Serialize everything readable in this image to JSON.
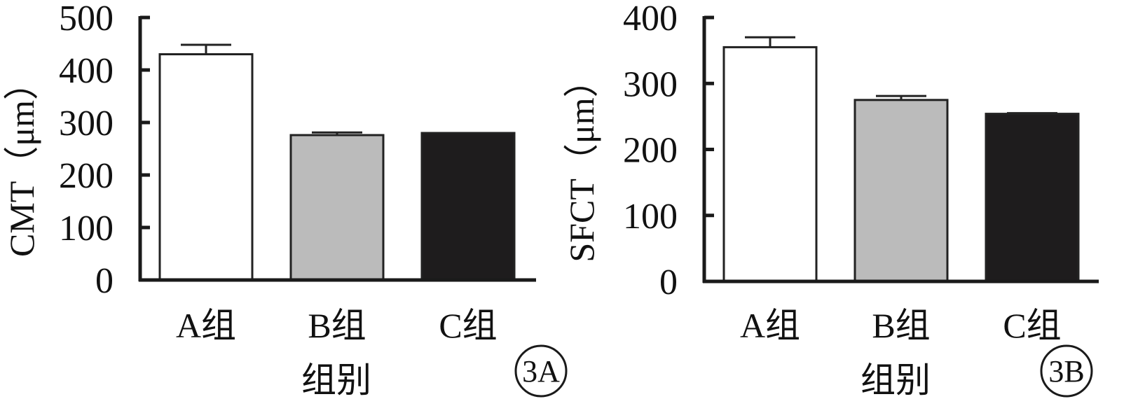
{
  "chart_data": [
    {
      "type": "bar",
      "panel_label": "3A",
      "categories": [
        "A组",
        "B组",
        "C组"
      ],
      "values": [
        430,
        276,
        280
      ],
      "errors": [
        18,
        5,
        0
      ],
      "colors": [
        "#ffffff",
        "#bbbbbb",
        "#1e1c1d"
      ],
      "ylabel": "CMT（μm）",
      "xlabel": "组别",
      "ylim": [
        0,
        500
      ],
      "yticks": [
        0,
        100,
        200,
        300,
        400,
        500
      ],
      "grid": false
    },
    {
      "type": "bar",
      "panel_label": "3B",
      "categories": [
        "A组",
        "B组",
        "C组"
      ],
      "values": [
        355,
        275,
        254
      ],
      "errors": [
        15,
        6,
        1
      ],
      "colors": [
        "#ffffff",
        "#bbbbbb",
        "#1e1c1d"
      ],
      "ylabel": "SFCT（μm）",
      "xlabel": "组别",
      "ylim": [
        0,
        400
      ],
      "yticks": [
        0,
        100,
        200,
        300,
        400
      ],
      "grid": false
    }
  ]
}
